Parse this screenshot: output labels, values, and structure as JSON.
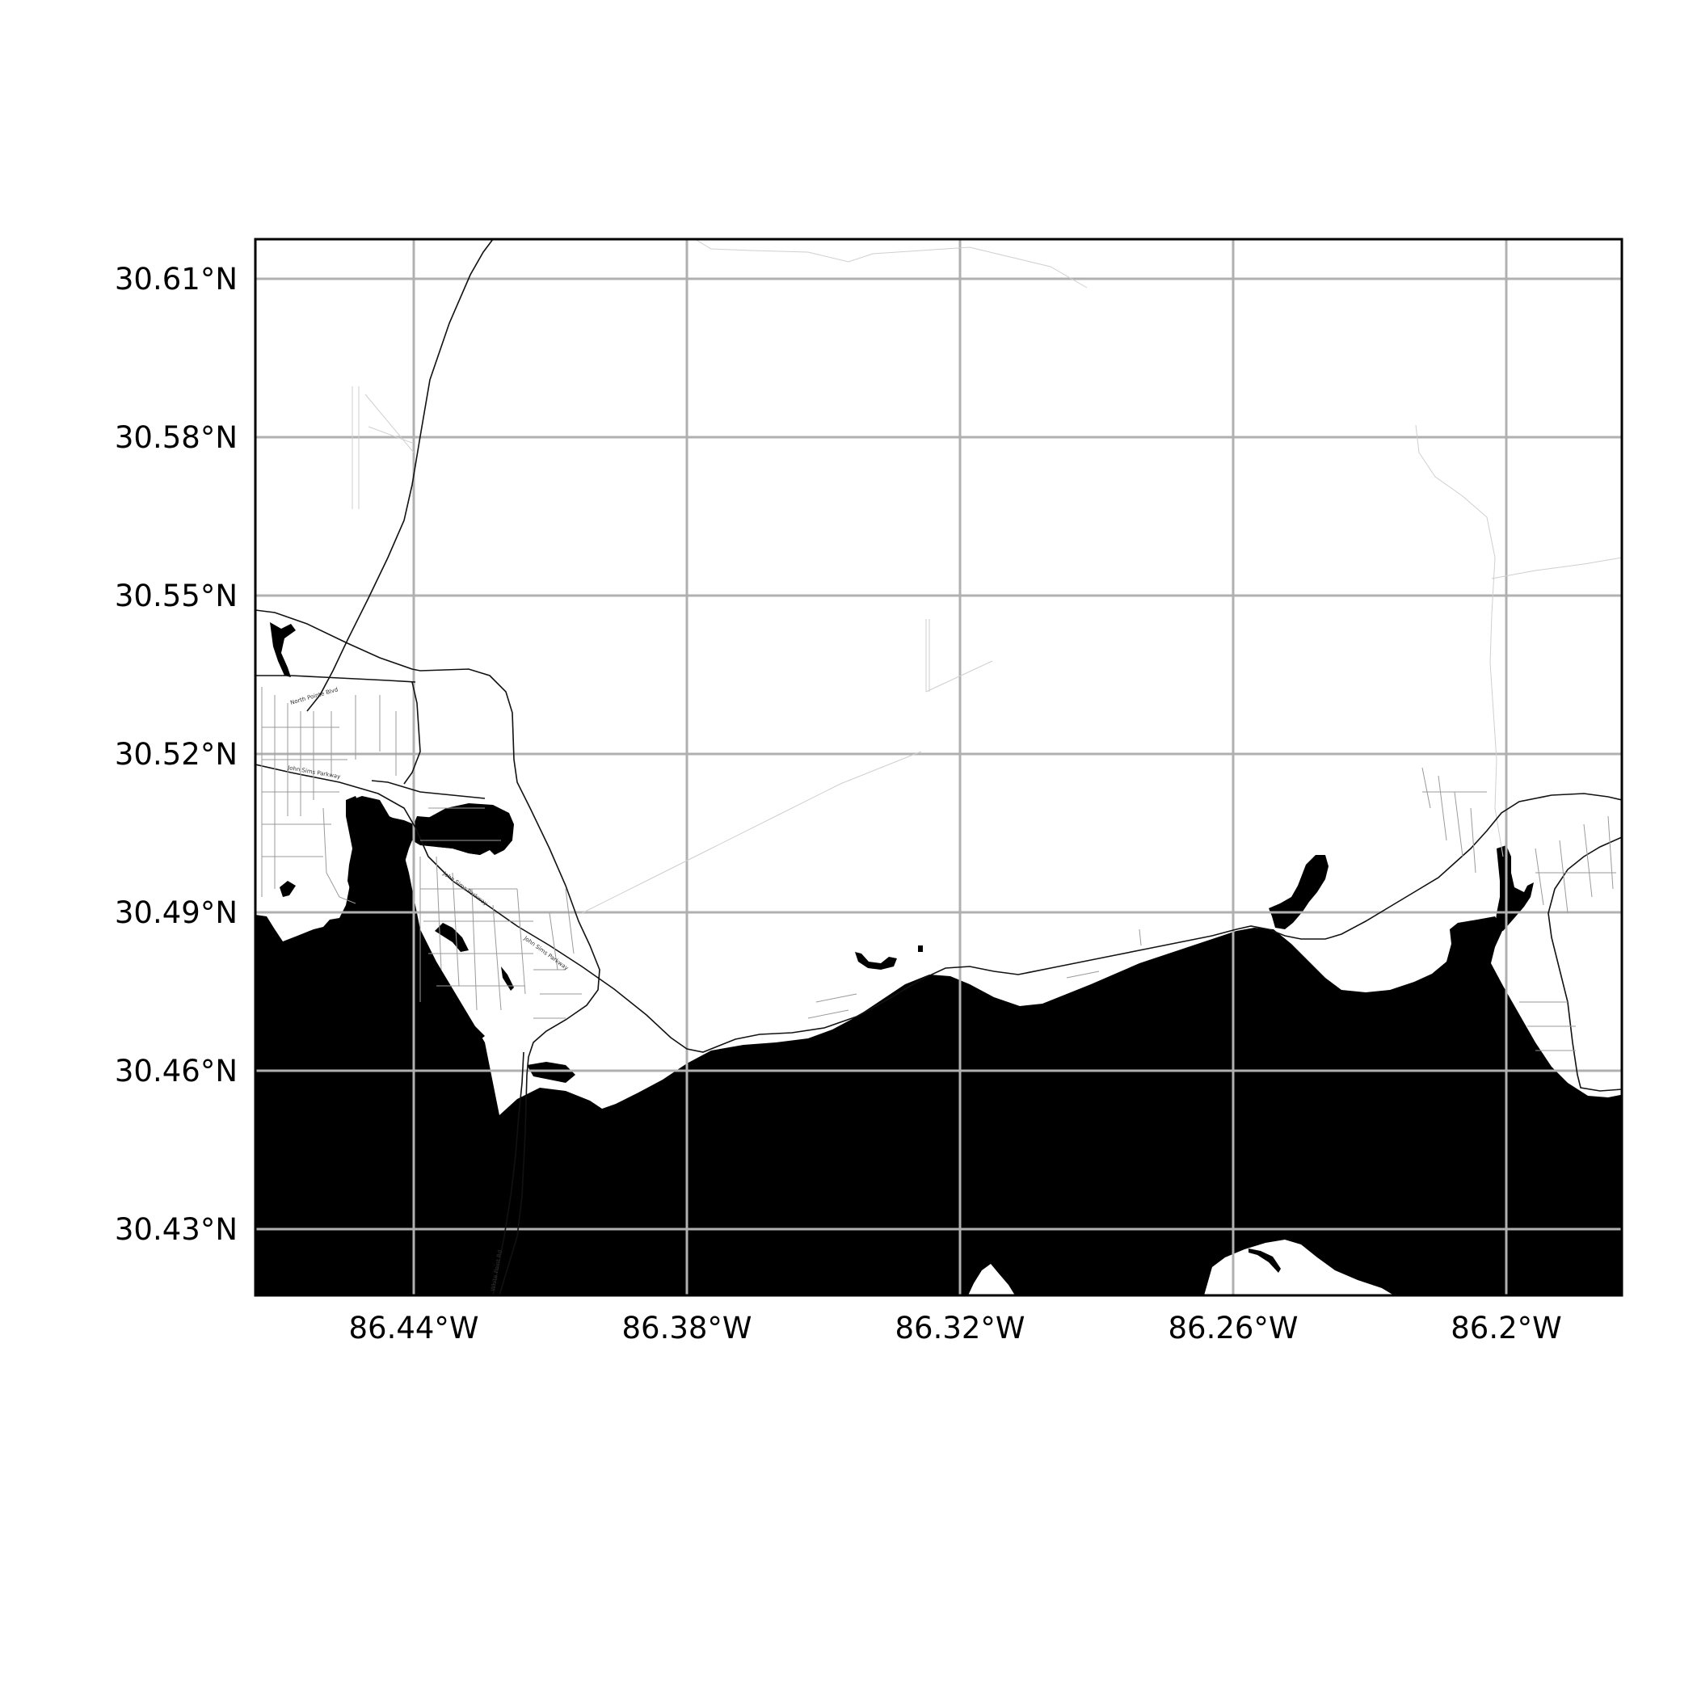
{
  "map": {
    "lat_ticks": [
      "30.61°N",
      "30.58°N",
      "30.55°N",
      "30.52°N",
      "30.49°N",
      "30.46°N",
      "30.43°N"
    ],
    "lon_ticks": [
      "86.44°W",
      "86.38°W",
      "86.32°W",
      "86.26°W",
      "86.2°W"
    ],
    "road_labels": {
      "north_pointe": "North Pointe Blvd",
      "john_sims_a": "John Sims Parkway",
      "john_sims_b": "John Sims Parkway",
      "john_sims_c": "John Sims Parkway",
      "bridge": "White Point Rd"
    },
    "colors": {
      "water": "#000000",
      "land": "#ffffff",
      "grid": "#b0b0b0",
      "frame": "#000000"
    }
  }
}
